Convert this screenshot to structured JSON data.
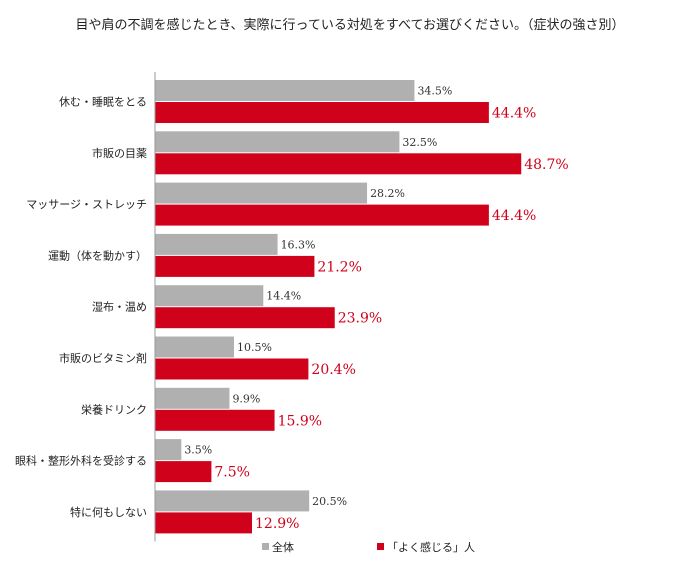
{
  "chart_data": {
    "type": "bar",
    "orientation": "horizontal",
    "title": "目や肩の不調を感じたとき、実際に行っている対処をすべてお選びください。（症状の強さ別）",
    "categories": [
      "休む・睡眠をとる",
      "市販の目薬",
      "マッサージ・ストレッチ",
      "運動（体を動かす）",
      "湿布・温め",
      "市販のビタミン剤",
      "栄養ドリンク",
      "眼科・整形外科を受診する",
      "特に何もしない"
    ],
    "series": [
      {
        "name": "全体",
        "color": "#b0b0b0",
        "values": [
          34.5,
          32.5,
          28.2,
          16.3,
          14.4,
          10.5,
          9.9,
          3.5,
          20.5
        ],
        "labels": [
          "34.5%",
          "32.5%",
          "28.2%",
          "16.3%",
          "14.4%",
          "10.5%",
          "9.9%",
          "3.5%",
          "20.5%"
        ]
      },
      {
        "name": "「よく感じる」人",
        "color": "#d0021b",
        "values": [
          44.4,
          48.7,
          44.4,
          21.2,
          23.9,
          20.4,
          15.9,
          7.5,
          12.9
        ],
        "labels": [
          "44.4%",
          "48.7%",
          "44.4%",
          "21.2%",
          "23.9%",
          "20.4%",
          "15.9%",
          "7.5%",
          "12.9%"
        ]
      }
    ],
    "xlim": [
      0,
      50
    ],
    "grid": false,
    "legend_position": "bottom"
  }
}
